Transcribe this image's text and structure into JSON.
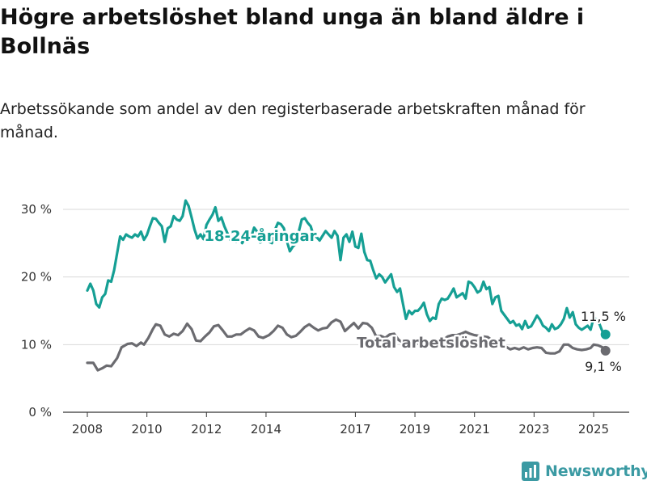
{
  "title": "Högre arbetslöshet bland unga än bland äldre i Bollnäs",
  "subtitle": "Arbetssökande som andel av den registerbaserade arbetskraften månad för månad.",
  "brand": {
    "name": "Newsworthy",
    "icon": "newsworthy-bar-chart-icon"
  },
  "colors": {
    "youth": "#159f94",
    "total": "#6b6b70",
    "grid": "#d9d9d9",
    "axis": "#333333",
    "brand": "#3b9aa3"
  },
  "chart_data": {
    "type": "line",
    "xlim": [
      2007.6,
      2026.3
    ],
    "ylim": [
      0,
      30
    ],
    "x_ticks": [
      2008,
      2010,
      2012,
      2014,
      2017,
      2019,
      2021,
      2023,
      2025
    ],
    "y_ticks": [
      0,
      10,
      20,
      30
    ],
    "y_tick_labels": [
      "0 %",
      "10 %",
      "20 %",
      "30 %"
    ],
    "grid": true,
    "series": [
      {
        "name": "18-24-åringar",
        "last_value_label": "11,5 %",
        "points": [
          [
            2008.0,
            18.0
          ],
          [
            2008.1,
            19.0
          ],
          [
            2008.2,
            18.0
          ],
          [
            2008.3,
            16.0
          ],
          [
            2008.4,
            15.5
          ],
          [
            2008.5,
            17.0
          ],
          [
            2008.6,
            17.5
          ],
          [
            2008.7,
            19.5
          ],
          [
            2008.8,
            19.3
          ],
          [
            2008.9,
            21.0
          ],
          [
            2009.0,
            23.5
          ],
          [
            2009.1,
            26.0
          ],
          [
            2009.2,
            25.5
          ],
          [
            2009.3,
            26.3
          ],
          [
            2009.4,
            26.0
          ],
          [
            2009.5,
            25.8
          ],
          [
            2009.6,
            26.3
          ],
          [
            2009.7,
            26.0
          ],
          [
            2009.8,
            26.7
          ],
          [
            2009.9,
            25.5
          ],
          [
            2010.0,
            26.2
          ],
          [
            2010.1,
            27.5
          ],
          [
            2010.2,
            28.7
          ],
          [
            2010.3,
            28.6
          ],
          [
            2010.4,
            28.0
          ],
          [
            2010.5,
            27.5
          ],
          [
            2010.6,
            25.2
          ],
          [
            2010.7,
            27.2
          ],
          [
            2010.8,
            27.5
          ],
          [
            2010.9,
            29.0
          ],
          [
            2011.0,
            28.5
          ],
          [
            2011.1,
            28.3
          ],
          [
            2011.2,
            29.0
          ],
          [
            2011.3,
            31.3
          ],
          [
            2011.4,
            30.5
          ],
          [
            2011.5,
            28.8
          ],
          [
            2011.6,
            27.0
          ],
          [
            2011.7,
            25.7
          ],
          [
            2011.8,
            26.3
          ],
          [
            2011.9,
            25.6
          ],
          [
            2012.0,
            27.7
          ],
          [
            2012.1,
            28.5
          ],
          [
            2012.2,
            29.2
          ],
          [
            2012.3,
            30.3
          ],
          [
            2012.4,
            28.3
          ],
          [
            2012.5,
            28.8
          ],
          [
            2012.6,
            27.5
          ],
          [
            2012.7,
            26.5
          ],
          [
            2012.8,
            25.5
          ],
          [
            2012.9,
            25.8
          ],
          [
            2013.0,
            25.2
          ],
          [
            2013.1,
            25.7
          ],
          [
            2013.2,
            25.0
          ],
          [
            2013.3,
            25.9
          ],
          [
            2013.4,
            26.1
          ],
          [
            2013.5,
            25.9
          ],
          [
            2013.6,
            27.3
          ],
          [
            2013.7,
            26.7
          ],
          [
            2013.8,
            25.1
          ],
          [
            2013.9,
            25.3
          ],
          [
            2014.0,
            25.8
          ],
          [
            2014.1,
            25.2
          ],
          [
            2014.2,
            25.0
          ],
          [
            2014.3,
            27.0
          ],
          [
            2014.4,
            28.0
          ],
          [
            2014.5,
            27.8
          ],
          [
            2014.6,
            27.2
          ],
          [
            2014.7,
            25.3
          ],
          [
            2014.8,
            23.8
          ],
          [
            2014.9,
            24.5
          ],
          [
            2015.0,
            24.9
          ],
          [
            2015.1,
            26.7
          ],
          [
            2015.2,
            28.5
          ],
          [
            2015.3,
            28.7
          ],
          [
            2015.4,
            28.0
          ],
          [
            2015.5,
            27.5
          ],
          [
            2015.6,
            26.0
          ],
          [
            2015.7,
            25.9
          ],
          [
            2015.8,
            25.4
          ],
          [
            2015.9,
            26.1
          ],
          [
            2016.0,
            26.8
          ],
          [
            2016.1,
            26.3
          ],
          [
            2016.2,
            25.8
          ],
          [
            2016.3,
            26.8
          ],
          [
            2016.4,
            26.1
          ],
          [
            2016.5,
            22.5
          ],
          [
            2016.6,
            25.8
          ],
          [
            2016.7,
            26.3
          ],
          [
            2016.8,
            25.2
          ],
          [
            2016.9,
            26.7
          ],
          [
            2017.0,
            24.5
          ],
          [
            2017.1,
            24.3
          ],
          [
            2017.2,
            26.4
          ],
          [
            2017.3,
            23.7
          ],
          [
            2017.4,
            22.5
          ],
          [
            2017.5,
            22.4
          ],
          [
            2017.6,
            21.0
          ],
          [
            2017.7,
            19.8
          ],
          [
            2017.8,
            20.4
          ],
          [
            2017.9,
            20.0
          ],
          [
            2018.0,
            19.2
          ],
          [
            2018.1,
            19.8
          ],
          [
            2018.2,
            20.4
          ],
          [
            2018.3,
            18.5
          ],
          [
            2018.4,
            17.8
          ],
          [
            2018.5,
            18.3
          ],
          [
            2018.6,
            16.0
          ],
          [
            2018.7,
            13.8
          ],
          [
            2018.8,
            15.0
          ],
          [
            2018.9,
            14.5
          ],
          [
            2019.0,
            15.0
          ],
          [
            2019.1,
            15.0
          ],
          [
            2019.2,
            15.5
          ],
          [
            2019.3,
            16.2
          ],
          [
            2019.4,
            14.5
          ],
          [
            2019.5,
            13.5
          ],
          [
            2019.6,
            14.0
          ],
          [
            2019.7,
            13.8
          ],
          [
            2019.8,
            16.0
          ],
          [
            2019.9,
            16.8
          ],
          [
            2020.0,
            16.6
          ],
          [
            2020.1,
            16.8
          ],
          [
            2020.2,
            17.5
          ],
          [
            2020.3,
            18.3
          ],
          [
            2020.4,
            17.0
          ],
          [
            2020.5,
            17.3
          ],
          [
            2020.6,
            17.6
          ],
          [
            2020.7,
            16.8
          ],
          [
            2020.8,
            19.3
          ],
          [
            2020.9,
            19.1
          ],
          [
            2021.0,
            18.5
          ],
          [
            2021.1,
            17.7
          ],
          [
            2021.2,
            18.0
          ],
          [
            2021.3,
            19.3
          ],
          [
            2021.4,
            18.2
          ],
          [
            2021.5,
            18.5
          ],
          [
            2021.6,
            16.0
          ],
          [
            2021.7,
            17.0
          ],
          [
            2021.8,
            17.2
          ],
          [
            2021.9,
            15.0
          ],
          [
            2022.0,
            14.4
          ],
          [
            2022.1,
            13.8
          ],
          [
            2022.2,
            13.2
          ],
          [
            2022.3,
            13.5
          ],
          [
            2022.4,
            12.8
          ],
          [
            2022.5,
            13.0
          ],
          [
            2022.6,
            12.3
          ],
          [
            2022.7,
            13.5
          ],
          [
            2022.8,
            12.5
          ],
          [
            2022.9,
            12.7
          ],
          [
            2023.0,
            13.5
          ],
          [
            2023.1,
            14.3
          ],
          [
            2023.2,
            13.7
          ],
          [
            2023.3,
            12.8
          ],
          [
            2023.4,
            12.5
          ],
          [
            2023.5,
            12.0
          ],
          [
            2023.6,
            13.0
          ],
          [
            2023.7,
            12.3
          ],
          [
            2023.8,
            12.5
          ],
          [
            2023.9,
            13.0
          ],
          [
            2024.0,
            13.8
          ],
          [
            2024.1,
            15.4
          ],
          [
            2024.2,
            14.0
          ],
          [
            2024.3,
            14.8
          ],
          [
            2024.4,
            13.0
          ],
          [
            2024.5,
            12.5
          ],
          [
            2024.6,
            12.2
          ],
          [
            2024.7,
            12.5
          ],
          [
            2024.8,
            12.8
          ],
          [
            2024.9,
            12.2
          ],
          [
            2025.0,
            14.0
          ],
          [
            2025.1,
            13.7
          ],
          [
            2025.2,
            13.0
          ],
          [
            2025.3,
            11.9
          ],
          [
            2025.4,
            11.5
          ]
        ]
      },
      {
        "name": "Total arbetslöshet",
        "last_value_label": "9,1 %",
        "points": [
          [
            2008.0,
            7.3
          ],
          [
            2008.2,
            7.3
          ],
          [
            2008.35,
            6.2
          ],
          [
            2008.5,
            6.5
          ],
          [
            2008.65,
            6.9
          ],
          [
            2008.8,
            6.8
          ],
          [
            2009.0,
            8.0
          ],
          [
            2009.15,
            9.6
          ],
          [
            2009.35,
            10.1
          ],
          [
            2009.5,
            10.2
          ],
          [
            2009.65,
            9.8
          ],
          [
            2009.8,
            10.3
          ],
          [
            2009.9,
            10.0
          ],
          [
            2010.05,
            11.0
          ],
          [
            2010.2,
            12.3
          ],
          [
            2010.3,
            13.0
          ],
          [
            2010.45,
            12.8
          ],
          [
            2010.6,
            11.5
          ],
          [
            2010.75,
            11.2
          ],
          [
            2010.9,
            11.6
          ],
          [
            2011.05,
            11.4
          ],
          [
            2011.2,
            12.0
          ],
          [
            2011.35,
            13.1
          ],
          [
            2011.5,
            12.3
          ],
          [
            2011.65,
            10.6
          ],
          [
            2011.8,
            10.5
          ],
          [
            2011.95,
            11.2
          ],
          [
            2012.1,
            11.8
          ],
          [
            2012.25,
            12.7
          ],
          [
            2012.4,
            12.9
          ],
          [
            2012.55,
            12.1
          ],
          [
            2012.7,
            11.2
          ],
          [
            2012.85,
            11.2
          ],
          [
            2013.0,
            11.5
          ],
          [
            2013.15,
            11.5
          ],
          [
            2013.3,
            12.0
          ],
          [
            2013.45,
            12.4
          ],
          [
            2013.6,
            12.1
          ],
          [
            2013.75,
            11.2
          ],
          [
            2013.9,
            11.0
          ],
          [
            2014.1,
            11.4
          ],
          [
            2014.25,
            12.0
          ],
          [
            2014.4,
            12.8
          ],
          [
            2014.55,
            12.5
          ],
          [
            2014.7,
            11.5
          ],
          [
            2014.85,
            11.1
          ],
          [
            2015.0,
            11.3
          ],
          [
            2015.15,
            11.9
          ],
          [
            2015.3,
            12.6
          ],
          [
            2015.45,
            13.0
          ],
          [
            2015.6,
            12.5
          ],
          [
            2015.75,
            12.1
          ],
          [
            2015.9,
            12.4
          ],
          [
            2016.05,
            12.5
          ],
          [
            2016.2,
            13.3
          ],
          [
            2016.35,
            13.7
          ],
          [
            2016.5,
            13.4
          ],
          [
            2016.65,
            12.0
          ],
          [
            2016.8,
            12.6
          ],
          [
            2016.95,
            13.2
          ],
          [
            2017.1,
            12.4
          ],
          [
            2017.25,
            13.2
          ],
          [
            2017.4,
            13.1
          ],
          [
            2017.55,
            12.5
          ],
          [
            2017.7,
            11.2
          ],
          [
            2017.85,
            11.3
          ],
          [
            2018.0,
            11.0
          ],
          [
            2018.15,
            11.5
          ],
          [
            2018.3,
            11.6
          ],
          [
            2018.45,
            10.7
          ],
          [
            2018.6,
            10.3
          ],
          [
            2018.75,
            10.3
          ],
          [
            2018.9,
            10.0
          ],
          [
            2019.05,
            10.2
          ],
          [
            2019.2,
            10.0
          ],
          [
            2019.35,
            10.4
          ],
          [
            2019.5,
            10.2
          ],
          [
            2019.65,
            10.1
          ],
          [
            2019.8,
            10.7
          ],
          [
            2019.95,
            10.7
          ],
          [
            2020.1,
            11.2
          ],
          [
            2020.25,
            11.4
          ],
          [
            2020.4,
            11.4
          ],
          [
            2020.55,
            11.6
          ],
          [
            2020.7,
            11.9
          ],
          [
            2020.85,
            11.6
          ],
          [
            2021.0,
            11.4
          ],
          [
            2021.15,
            11.3
          ],
          [
            2021.3,
            11.2
          ],
          [
            2021.45,
            11.1
          ],
          [
            2021.6,
            10.6
          ],
          [
            2021.75,
            10.4
          ],
          [
            2021.9,
            10.1
          ],
          [
            2022.05,
            9.7
          ],
          [
            2022.2,
            9.3
          ],
          [
            2022.35,
            9.5
          ],
          [
            2022.5,
            9.3
          ],
          [
            2022.65,
            9.6
          ],
          [
            2022.8,
            9.3
          ],
          [
            2022.95,
            9.5
          ],
          [
            2023.1,
            9.6
          ],
          [
            2023.25,
            9.5
          ],
          [
            2023.4,
            8.8
          ],
          [
            2023.55,
            8.7
          ],
          [
            2023.7,
            8.7
          ],
          [
            2023.85,
            9.0
          ],
          [
            2024.0,
            10.0
          ],
          [
            2024.15,
            10.0
          ],
          [
            2024.3,
            9.5
          ],
          [
            2024.45,
            9.3
          ],
          [
            2024.6,
            9.2
          ],
          [
            2024.75,
            9.3
          ],
          [
            2024.9,
            9.5
          ],
          [
            2025.0,
            10.0
          ],
          [
            2025.15,
            9.9
          ],
          [
            2025.3,
            9.6
          ],
          [
            2025.4,
            9.1
          ]
        ]
      }
    ]
  }
}
